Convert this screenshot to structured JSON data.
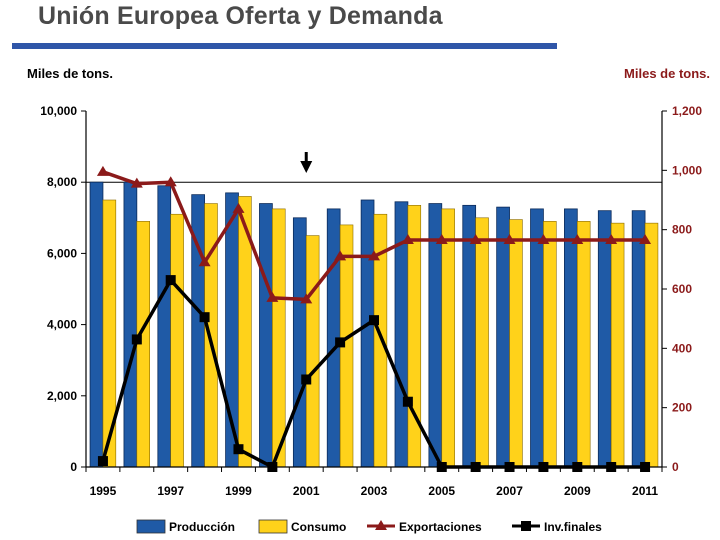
{
  "chart_data": {
    "type": "bar",
    "title": "Unión Europea Oferta y Demanda",
    "ylabel_left": "Miles de tons.",
    "ylabel_right": "Miles de tons.",
    "ylim_left": [
      0,
      10000
    ],
    "ylim_right": [
      0,
      1200
    ],
    "yticks_left": [
      "0",
      "2,000",
      "4,000",
      "6,000",
      "8,000",
      "10,000"
    ],
    "yticks_right": [
      "0",
      "200",
      "400",
      "600",
      "800",
      "1,000",
      "1,200"
    ],
    "categories": [
      "1995",
      "1996",
      "1997",
      "1998",
      "1999",
      "2000",
      "2001",
      "2002",
      "2003",
      "2004",
      "2005",
      "2006",
      "2007",
      "2008",
      "2009",
      "2010",
      "2011"
    ],
    "xtick_labels": [
      "1995",
      "1997",
      "1999",
      "2001",
      "2003",
      "2005",
      "2007",
      "2009",
      "2011"
    ],
    "series": [
      {
        "name": "Producción",
        "axis": "left",
        "kind": "bar",
        "color": "#1f5aa6",
        "values": [
          8000,
          8000,
          7900,
          7650,
          7700,
          7400,
          7000,
          7250,
          7500,
          7450,
          7400,
          7350,
          7300,
          7250,
          7250,
          7200,
          7200
        ]
      },
      {
        "name": "Consumo",
        "axis": "left",
        "kind": "bar",
        "color": "#ffd21a",
        "values": [
          7500,
          6900,
          7100,
          7400,
          7600,
          7250,
          6500,
          6800,
          7100,
          7350,
          7250,
          7000,
          6950,
          6900,
          6900,
          6850,
          6850
        ]
      },
      {
        "name": "Exportaciones",
        "axis": "right",
        "kind": "line",
        "color": "#8b1a1a",
        "values": [
          995,
          955,
          960,
          690,
          870,
          570,
          565,
          710,
          710,
          765,
          765,
          765,
          765,
          765,
          765,
          765,
          765
        ]
      },
      {
        "name": "Inv.finales",
        "axis": "right",
        "kind": "line",
        "color": "#000000",
        "values": [
          20,
          430,
          630,
          505,
          60,
          0,
          295,
          420,
          495,
          220,
          0,
          0,
          0,
          0,
          0,
          0,
          0
        ]
      }
    ],
    "reference_line_left": 8000,
    "annotation": "down-arrow above 2001",
    "legend_position": "bottom"
  }
}
